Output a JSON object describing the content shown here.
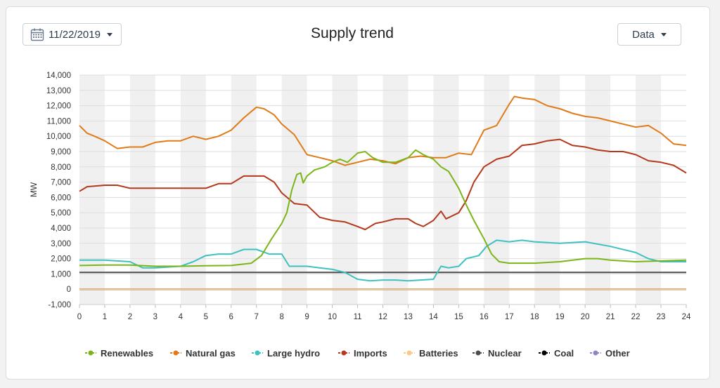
{
  "toolbar": {
    "date_label": "11/22/2019",
    "date_icon": "calendar-icon",
    "caret_icon": "chevron-down-icon",
    "data_label": "Data"
  },
  "chart_data": {
    "type": "line",
    "title": "Supply trend",
    "ylabel": "MW",
    "xlabel": "",
    "xlim": [
      0,
      24
    ],
    "ylim": [
      -1000,
      14000
    ],
    "x_ticks": [
      0,
      1,
      2,
      3,
      4,
      5,
      6,
      7,
      8,
      9,
      10,
      11,
      12,
      13,
      14,
      15,
      16,
      17,
      18,
      19,
      20,
      21,
      22,
      23,
      24
    ],
    "y_ticks": [
      -1000,
      0,
      1000,
      2000,
      3000,
      4000,
      5000,
      6000,
      7000,
      8000,
      9000,
      10000,
      11000,
      12000,
      13000,
      14000
    ],
    "y_tick_labels": [
      "-1,000",
      "0",
      "1,000",
      "2,000",
      "3,000",
      "4,000",
      "5,000",
      "6,000",
      "7,000",
      "8,000",
      "9,000",
      "10,000",
      "11,000",
      "12,000",
      "13,000",
      "14,000"
    ],
    "grid": true,
    "alternating_hour_bands": true,
    "legend_position": "bottom",
    "series": [
      {
        "name": "Renewables",
        "color": "#7cb518",
        "points": [
          [
            0,
            1550
          ],
          [
            1,
            1580
          ],
          [
            2,
            1580
          ],
          [
            3,
            1500
          ],
          [
            4,
            1500
          ],
          [
            5,
            1530
          ],
          [
            6,
            1550
          ],
          [
            6.8,
            1700
          ],
          [
            7.2,
            2200
          ],
          [
            7.6,
            3300
          ],
          [
            8,
            4300
          ],
          [
            8.2,
            5000
          ],
          [
            8.4,
            6500
          ],
          [
            8.6,
            7500
          ],
          [
            8.75,
            7600
          ],
          [
            8.85,
            6950
          ],
          [
            9,
            7400
          ],
          [
            9.3,
            7800
          ],
          [
            9.7,
            8000
          ],
          [
            10,
            8300
          ],
          [
            10.3,
            8500
          ],
          [
            10.6,
            8300
          ],
          [
            11,
            8900
          ],
          [
            11.3,
            9000
          ],
          [
            11.6,
            8600
          ],
          [
            12,
            8300
          ],
          [
            12.5,
            8300
          ],
          [
            13,
            8600
          ],
          [
            13.3,
            9100
          ],
          [
            13.6,
            8800
          ],
          [
            14,
            8500
          ],
          [
            14.3,
            8000
          ],
          [
            14.6,
            7700
          ],
          [
            15,
            6600
          ],
          [
            15.3,
            5500
          ],
          [
            15.6,
            4500
          ],
          [
            16,
            3300
          ],
          [
            16.3,
            2300
          ],
          [
            16.6,
            1800
          ],
          [
            17,
            1700
          ],
          [
            18,
            1700
          ],
          [
            19,
            1800
          ],
          [
            20,
            2000
          ],
          [
            20.5,
            2000
          ],
          [
            21,
            1900
          ],
          [
            22,
            1800
          ],
          [
            23,
            1850
          ],
          [
            24,
            1900
          ]
        ]
      },
      {
        "name": "Natural gas",
        "color": "#e07b1a",
        "points": [
          [
            0,
            10700
          ],
          [
            0.3,
            10200
          ],
          [
            0.6,
            10000
          ],
          [
            1,
            9700
          ],
          [
            1.3,
            9400
          ],
          [
            1.5,
            9200
          ],
          [
            2,
            9300
          ],
          [
            2.5,
            9300
          ],
          [
            3,
            9600
          ],
          [
            3.5,
            9700
          ],
          [
            4,
            9700
          ],
          [
            4.5,
            10000
          ],
          [
            5,
            9800
          ],
          [
            5.5,
            10000
          ],
          [
            6,
            10400
          ],
          [
            6.5,
            11200
          ],
          [
            7,
            11900
          ],
          [
            7.3,
            11800
          ],
          [
            7.7,
            11400
          ],
          [
            8,
            10800
          ],
          [
            8.5,
            10100
          ],
          [
            9,
            8800
          ],
          [
            9.5,
            8600
          ],
          [
            10,
            8400
          ],
          [
            10.5,
            8100
          ],
          [
            11,
            8300
          ],
          [
            11.5,
            8500
          ],
          [
            12,
            8400
          ],
          [
            12.5,
            8200
          ],
          [
            13,
            8600
          ],
          [
            13.5,
            8700
          ],
          [
            14,
            8600
          ],
          [
            14.5,
            8600
          ],
          [
            15,
            8900
          ],
          [
            15.5,
            8800
          ],
          [
            16,
            10400
          ],
          [
            16.5,
            10700
          ],
          [
            17,
            12100
          ],
          [
            17.2,
            12600
          ],
          [
            17.5,
            12500
          ],
          [
            18,
            12400
          ],
          [
            18.5,
            12000
          ],
          [
            19,
            11800
          ],
          [
            19.5,
            11500
          ],
          [
            20,
            11300
          ],
          [
            20.5,
            11200
          ],
          [
            21,
            11000
          ],
          [
            21.5,
            10800
          ],
          [
            22,
            10600
          ],
          [
            22.5,
            10700
          ],
          [
            23,
            10200
          ],
          [
            23.5,
            9500
          ],
          [
            24,
            9400
          ]
        ]
      },
      {
        "name": "Large hydro",
        "color": "#3ec1c1",
        "points": [
          [
            0,
            1900
          ],
          [
            1,
            1900
          ],
          [
            2,
            1800
          ],
          [
            2.5,
            1400
          ],
          [
            3,
            1400
          ],
          [
            4,
            1500
          ],
          [
            4.5,
            1800
          ],
          [
            5,
            2200
          ],
          [
            5.5,
            2300
          ],
          [
            6,
            2300
          ],
          [
            6.5,
            2600
          ],
          [
            7,
            2600
          ],
          [
            7.5,
            2300
          ],
          [
            8,
            2300
          ],
          [
            8.3,
            1500
          ],
          [
            9,
            1500
          ],
          [
            9.5,
            1400
          ],
          [
            10,
            1300
          ],
          [
            10.5,
            1100
          ],
          [
            11,
            650
          ],
          [
            11.5,
            550
          ],
          [
            12,
            600
          ],
          [
            12.5,
            600
          ],
          [
            13,
            550
          ],
          [
            13.5,
            600
          ],
          [
            14,
            650
          ],
          [
            14.3,
            1500
          ],
          [
            14.6,
            1400
          ],
          [
            15,
            1500
          ],
          [
            15.3,
            2000
          ],
          [
            15.8,
            2200
          ],
          [
            16.1,
            2800
          ],
          [
            16.5,
            3200
          ],
          [
            17,
            3100
          ],
          [
            17.5,
            3200
          ],
          [
            18,
            3100
          ],
          [
            19,
            3000
          ],
          [
            20,
            3100
          ],
          [
            21,
            2800
          ],
          [
            22,
            2400
          ],
          [
            22.5,
            2000
          ],
          [
            23,
            1800
          ],
          [
            24,
            1800
          ]
        ]
      },
      {
        "name": "Imports",
        "color": "#b5381c",
        "points": [
          [
            0,
            6400
          ],
          [
            0.3,
            6700
          ],
          [
            1,
            6800
          ],
          [
            1.5,
            6800
          ],
          [
            2,
            6600
          ],
          [
            3,
            6600
          ],
          [
            4,
            6600
          ],
          [
            4.5,
            6600
          ],
          [
            5,
            6600
          ],
          [
            5.5,
            6900
          ],
          [
            6,
            6900
          ],
          [
            6.5,
            7400
          ],
          [
            7,
            7400
          ],
          [
            7.3,
            7400
          ],
          [
            7.7,
            7000
          ],
          [
            8,
            6300
          ],
          [
            8.5,
            5600
          ],
          [
            9,
            5500
          ],
          [
            9.5,
            4700
          ],
          [
            10,
            4500
          ],
          [
            10.5,
            4400
          ],
          [
            11,
            4100
          ],
          [
            11.3,
            3900
          ],
          [
            11.7,
            4300
          ],
          [
            12,
            4400
          ],
          [
            12.5,
            4600
          ],
          [
            13,
            4600
          ],
          [
            13.3,
            4300
          ],
          [
            13.6,
            4100
          ],
          [
            14,
            4500
          ],
          [
            14.3,
            5100
          ],
          [
            14.5,
            4600
          ],
          [
            15,
            5000
          ],
          [
            15.3,
            5800
          ],
          [
            15.6,
            7000
          ],
          [
            16,
            8000
          ],
          [
            16.5,
            8500
          ],
          [
            17,
            8700
          ],
          [
            17.5,
            9400
          ],
          [
            18,
            9500
          ],
          [
            18.5,
            9700
          ],
          [
            19,
            9800
          ],
          [
            19.5,
            9400
          ],
          [
            20,
            9300
          ],
          [
            20.5,
            9100
          ],
          [
            21,
            9000
          ],
          [
            21.5,
            9000
          ],
          [
            22,
            8800
          ],
          [
            22.5,
            8400
          ],
          [
            23,
            8300
          ],
          [
            23.5,
            8100
          ],
          [
            24,
            7600
          ]
        ]
      },
      {
        "name": "Batteries",
        "color": "#f7c98b",
        "points": [
          [
            0,
            0
          ],
          [
            24,
            0
          ]
        ]
      },
      {
        "name": "Nuclear",
        "color": "#4d4d4d",
        "points": [
          [
            0,
            1100
          ],
          [
            24,
            1100
          ]
        ]
      },
      {
        "name": "Coal",
        "color": "#000000",
        "points": [
          [
            0,
            0
          ],
          [
            24,
            0
          ]
        ]
      },
      {
        "name": "Other",
        "color": "#8f86c2",
        "points": [
          [
            0,
            0
          ],
          [
            24,
            0
          ]
        ]
      }
    ]
  }
}
